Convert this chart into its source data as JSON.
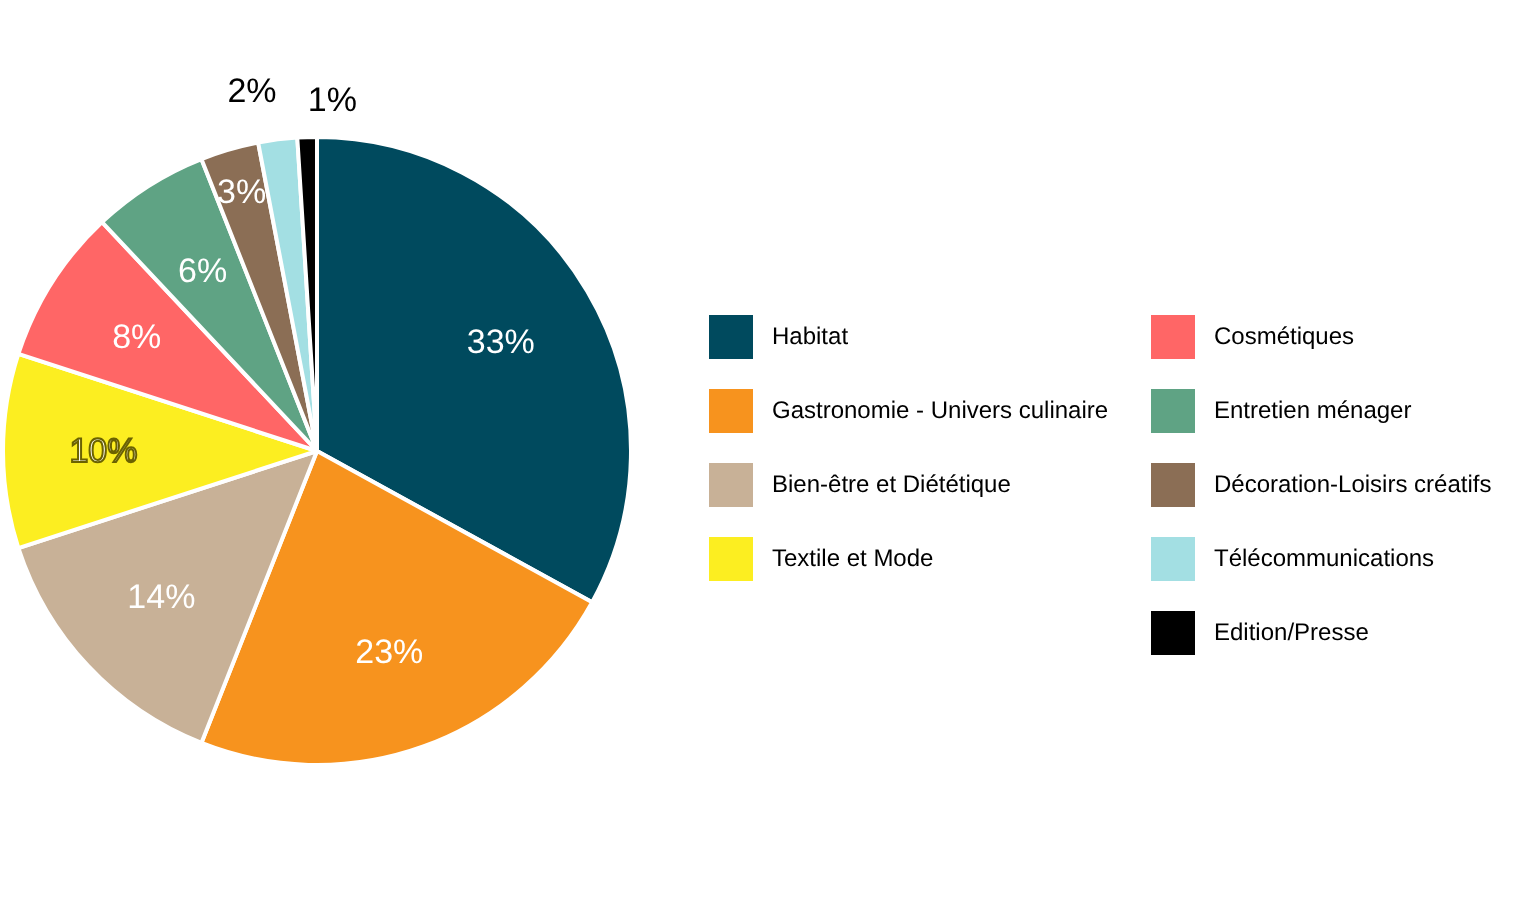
{
  "chart_data": {
    "type": "pie",
    "categories": [
      "Habitat",
      "Gastronomie - Univers culinaire",
      "Bien-être et Diététique",
      "Textile et Mode",
      "Cosmétiques",
      "Entretien ménager",
      "Décoration-Loisirs créatifs",
      "Télécommunications",
      "Edition/Presse"
    ],
    "values": [
      33,
      23,
      14,
      10,
      8,
      6,
      3,
      2,
      1
    ],
    "colors": [
      "#004a5e",
      "#f7931e",
      "#c8b197",
      "#fcee21",
      "#ff6666",
      "#5fa384",
      "#8b6e55",
      "#a3dfe3",
      "#000000"
    ],
    "value_labels": [
      "33%",
      "23%",
      "14%",
      "10%",
      "8%",
      "6%",
      "3%",
      "2%",
      "1%"
    ],
    "legend": "right"
  }
}
